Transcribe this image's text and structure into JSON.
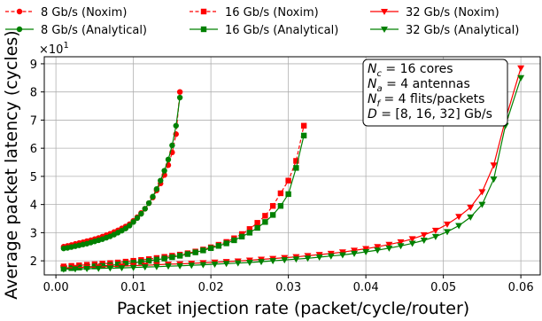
{
  "chart_data": {
    "type": "line",
    "xlabel": "Packet injection rate (packet/cycle/router)",
    "ylabel": "Average packet latency (cycles)",
    "y_multiplier": "×10",
    "y_multiplier_exp": "1",
    "xlim": [
      -0.0015,
      0.0625
    ],
    "ylim": [
      1.5,
      9.25
    ],
    "xticks": [
      0.0,
      0.01,
      0.02,
      0.03,
      0.04,
      0.05,
      0.06
    ],
    "xtick_labels": [
      "0.00",
      "0.01",
      "0.02",
      "0.03",
      "0.04",
      "0.05",
      "0.06"
    ],
    "yticks": [
      2,
      3,
      4,
      5,
      6,
      7,
      8,
      9
    ],
    "ytick_labels": [
      "2",
      "3",
      "4",
      "5",
      "6",
      "7",
      "8",
      "9"
    ],
    "grid": true,
    "legend_position": "top",
    "annotation": {
      "lines": [
        {
          "sym": "N",
          "sub": "c",
          "rest": " = 16 cores"
        },
        {
          "sym": "N",
          "sub": "a",
          "rest": " = 4 antennas"
        },
        {
          "sym": "N",
          "sub": "f",
          "rest": " = 4 flits/packets"
        },
        {
          "sym": "D",
          "sub": "",
          "rest": "  = [8, 16, 32] Gb/s"
        }
      ]
    },
    "series": [
      {
        "name": "8 Gb/s (Noxim)",
        "color": "#ff0000",
        "dashed": true,
        "marker": "circle",
        "x": [
          0.001,
          0.0015,
          0.002,
          0.0025,
          0.003,
          0.0035,
          0.004,
          0.0045,
          0.005,
          0.0055,
          0.006,
          0.0065,
          0.007,
          0.0075,
          0.008,
          0.0085,
          0.009,
          0.0095,
          0.01,
          0.0105,
          0.011,
          0.0115,
          0.012,
          0.0125,
          0.013,
          0.0135,
          0.014,
          0.0145,
          0.015,
          0.0155,
          0.016
        ],
        "y": [
          2.5,
          2.53,
          2.56,
          2.6,
          2.63,
          2.66,
          2.7,
          2.73,
          2.77,
          2.81,
          2.86,
          2.91,
          2.96,
          3.02,
          3.08,
          3.15,
          3.22,
          3.3,
          3.42,
          3.55,
          3.7,
          3.85,
          4.05,
          4.25,
          4.5,
          4.75,
          5.05,
          5.4,
          5.85,
          6.5,
          8.0
        ]
      },
      {
        "name": "8 Gb/s (Analytical)",
        "color": "#008000",
        "dashed": false,
        "marker": "circle",
        "x": [
          0.001,
          0.0015,
          0.002,
          0.0025,
          0.003,
          0.0035,
          0.004,
          0.0045,
          0.005,
          0.0055,
          0.006,
          0.0065,
          0.007,
          0.0075,
          0.008,
          0.0085,
          0.009,
          0.0095,
          0.01,
          0.0105,
          0.011,
          0.0115,
          0.012,
          0.0125,
          0.013,
          0.0135,
          0.014,
          0.0145,
          0.015,
          0.0155,
          0.016
        ],
        "y": [
          2.44,
          2.46,
          2.49,
          2.52,
          2.55,
          2.58,
          2.61,
          2.65,
          2.69,
          2.73,
          2.77,
          2.82,
          2.87,
          2.93,
          3.0,
          3.07,
          3.15,
          3.25,
          3.38,
          3.52,
          3.67,
          3.85,
          4.05,
          4.28,
          4.55,
          4.85,
          5.2,
          5.6,
          6.1,
          6.8,
          7.8
        ]
      },
      {
        "name": "16 Gb/s (Noxim)",
        "color": "#ff0000",
        "dashed": true,
        "marker": "square",
        "x": [
          0.001,
          0.002,
          0.003,
          0.004,
          0.005,
          0.006,
          0.007,
          0.008,
          0.009,
          0.01,
          0.011,
          0.012,
          0.013,
          0.014,
          0.015,
          0.016,
          0.017,
          0.018,
          0.019,
          0.02,
          0.021,
          0.022,
          0.023,
          0.024,
          0.025,
          0.026,
          0.027,
          0.028,
          0.029,
          0.03,
          0.031,
          0.032
        ],
        "y": [
          1.8,
          1.82,
          1.84,
          1.86,
          1.88,
          1.9,
          1.92,
          1.94,
          1.97,
          2.0,
          2.03,
          2.06,
          2.1,
          2.14,
          2.18,
          2.22,
          2.27,
          2.33,
          2.4,
          2.48,
          2.57,
          2.67,
          2.8,
          2.95,
          3.13,
          3.35,
          3.6,
          3.95,
          4.4,
          4.85,
          5.55,
          6.8
        ]
      },
      {
        "name": "16 Gb/s (Analytical)",
        "color": "#008000",
        "dashed": false,
        "marker": "square",
        "x": [
          0.001,
          0.002,
          0.003,
          0.004,
          0.005,
          0.006,
          0.007,
          0.008,
          0.009,
          0.01,
          0.011,
          0.012,
          0.013,
          0.014,
          0.015,
          0.016,
          0.017,
          0.018,
          0.019,
          0.02,
          0.021,
          0.022,
          0.023,
          0.024,
          0.025,
          0.026,
          0.027,
          0.028,
          0.029,
          0.03,
          0.031,
          0.032
        ],
        "y": [
          1.72,
          1.74,
          1.76,
          1.78,
          1.8,
          1.82,
          1.84,
          1.87,
          1.9,
          1.93,
          1.96,
          2.0,
          2.04,
          2.08,
          2.13,
          2.18,
          2.24,
          2.3,
          2.37,
          2.45,
          2.53,
          2.62,
          2.73,
          2.86,
          3.0,
          3.17,
          3.38,
          3.63,
          3.95,
          4.37,
          5.3,
          6.45
        ]
      },
      {
        "name": "32 Gb/s (Noxim)",
        "color": "#ff0000",
        "dashed": false,
        "marker": "triangle-down",
        "x": [
          0.001,
          0.0025,
          0.004,
          0.0055,
          0.007,
          0.0085,
          0.01,
          0.0115,
          0.013,
          0.0145,
          0.016,
          0.0175,
          0.019,
          0.0205,
          0.022,
          0.0235,
          0.025,
          0.0265,
          0.028,
          0.0295,
          0.031,
          0.0325,
          0.034,
          0.0355,
          0.037,
          0.0385,
          0.04,
          0.0415,
          0.043,
          0.0445,
          0.046,
          0.0475,
          0.049,
          0.0505,
          0.052,
          0.0535,
          0.055,
          0.0565,
          0.058,
          0.06
        ],
        "y": [
          1.75,
          1.76,
          1.77,
          1.78,
          1.8,
          1.81,
          1.83,
          1.84,
          1.86,
          1.88,
          1.89,
          1.91,
          1.93,
          1.95,
          1.97,
          1.99,
          2.02,
          2.05,
          2.08,
          2.11,
          2.14,
          2.18,
          2.22,
          2.26,
          2.31,
          2.37,
          2.43,
          2.5,
          2.58,
          2.67,
          2.78,
          2.92,
          3.08,
          3.3,
          3.57,
          3.9,
          4.45,
          5.4,
          7.0,
          8.85
        ]
      },
      {
        "name": "32 Gb/s (Analytical)",
        "color": "#008000",
        "dashed": false,
        "marker": "triangle-down",
        "x": [
          0.001,
          0.0025,
          0.004,
          0.0055,
          0.007,
          0.0085,
          0.01,
          0.0115,
          0.013,
          0.0145,
          0.016,
          0.0175,
          0.019,
          0.0205,
          0.022,
          0.0235,
          0.025,
          0.0265,
          0.028,
          0.0295,
          0.031,
          0.0325,
          0.034,
          0.0355,
          0.037,
          0.0385,
          0.04,
          0.0415,
          0.043,
          0.0445,
          0.046,
          0.0475,
          0.049,
          0.0505,
          0.052,
          0.0535,
          0.055,
          0.0565,
          0.058,
          0.06
        ],
        "y": [
          1.7,
          1.71,
          1.72,
          1.73,
          1.74,
          1.75,
          1.76,
          1.78,
          1.79,
          1.81,
          1.82,
          1.84,
          1.86,
          1.88,
          1.9,
          1.92,
          1.94,
          1.97,
          2.0,
          2.03,
          2.06,
          2.09,
          2.13,
          2.17,
          2.21,
          2.26,
          2.32,
          2.38,
          2.45,
          2.53,
          2.62,
          2.73,
          2.86,
          3.03,
          3.25,
          3.55,
          4.0,
          4.9,
          6.8,
          8.5
        ]
      }
    ]
  }
}
